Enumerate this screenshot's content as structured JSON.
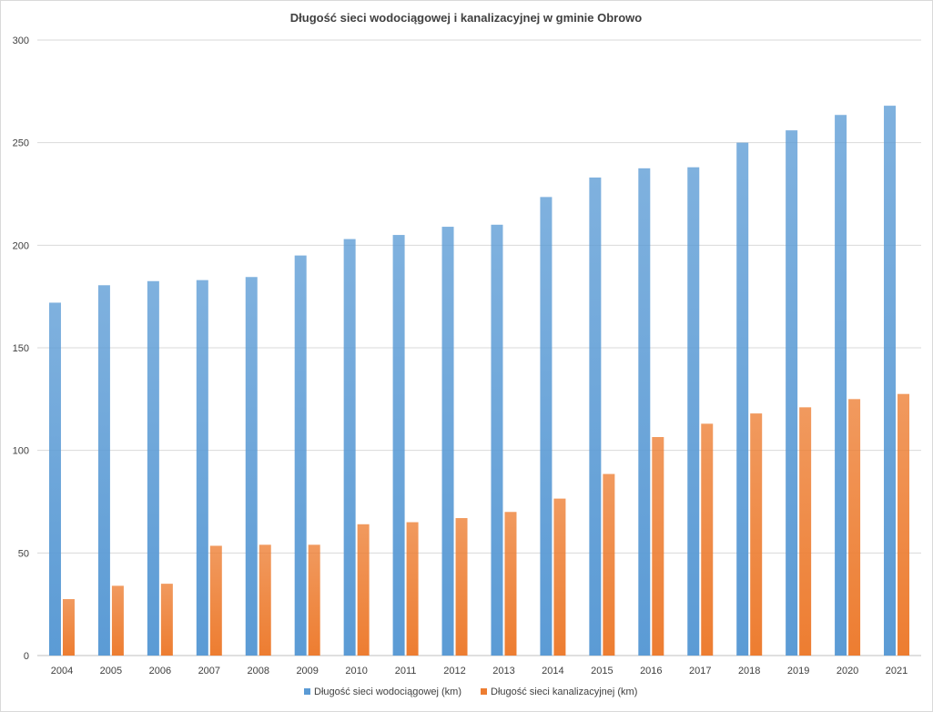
{
  "chart_data": {
    "type": "bar",
    "title": "Długość sieci wodociągowej i kanalizacyjnej w gminie Obrowo",
    "xlabel": "",
    "ylabel": "",
    "ylim": [
      0,
      300
    ],
    "yticks": [
      0,
      50,
      100,
      150,
      200,
      250,
      300
    ],
    "grid": true,
    "legend_position": "bottom",
    "categories": [
      "2004",
      "2005",
      "2006",
      "2007",
      "2008",
      "2009",
      "2010",
      "2011",
      "2012",
      "2013",
      "2014",
      "2015",
      "2016",
      "2017",
      "2018",
      "2019",
      "2020",
      "2021"
    ],
    "series": [
      {
        "name": "Długość sieci wodociągowej (km)",
        "color": "#5b9bd5",
        "values": [
          172,
          180.5,
          182.5,
          183,
          184.5,
          195,
          203,
          205,
          209,
          210,
          223.5,
          233,
          237.5,
          238,
          250,
          256,
          263.5,
          268
        ]
      },
      {
        "name": "Długość sieci kanalizacyjnej (km)",
        "color": "#ed7d31",
        "values": [
          27.5,
          34,
          35,
          53.5,
          54,
          54,
          64,
          65,
          67,
          70,
          76.5,
          88.5,
          106.5,
          113,
          118,
          121,
          125,
          127.5
        ]
      }
    ]
  }
}
